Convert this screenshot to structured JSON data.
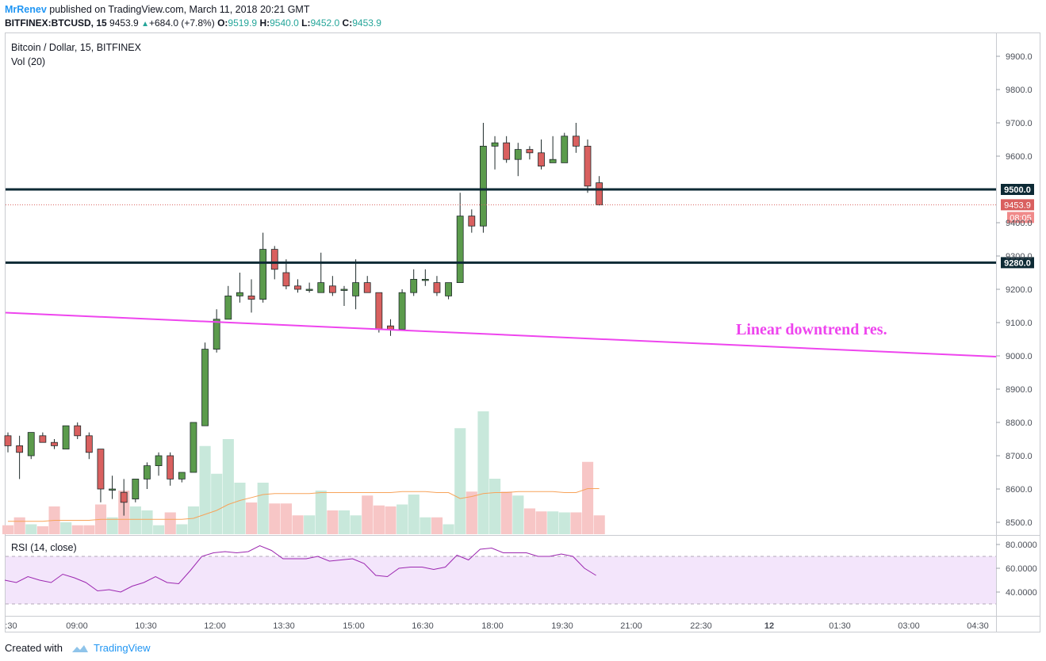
{
  "header": {
    "author": "MrRenev",
    "published": "published on TradingView.com, March 11, 2018 20:21 GMT",
    "symbol": "BITFINEX:BTCUSD, 15",
    "last": "9453.9",
    "change": "+684.0 (+7.8%)",
    "o_label": "O:",
    "o": "9519.9",
    "h_label": "H:",
    "h": "9540.0",
    "l_label": "L:",
    "l": "9452.0",
    "c_label": "C:",
    "c": "9453.9"
  },
  "legend": {
    "title": "Bitcoin / Dollar, 15, BITFINEX",
    "vol": "Vol (20)",
    "rsi": "RSI (14, close)"
  },
  "footer": {
    "created": "Created with",
    "brand": "TradingView"
  },
  "colors": {
    "up": "#5b9b4c",
    "down": "#d9605f",
    "level": "#0d2a35",
    "trend": "#ee45ee",
    "rsi": "#9c27b0",
    "rsi_fill": "#f3e5fb",
    "vol_up": "#c8e8db",
    "vol_down": "#f7c6c6",
    "vol_ma": "#f7a35a"
  },
  "chart_data": {
    "type": "candlestick",
    "price_ticks": [
      "9900.0",
      "9800.0",
      "9700.0",
      "9600.0",
      "9400.0",
      "9300.0",
      "9200.0",
      "9100.0",
      "9000.0",
      "8900.0",
      "8800.0",
      "8700.0",
      "8600.0",
      "8500.0"
    ],
    "time_ticks": [
      ":30",
      "09:00",
      "10:30",
      "12:00",
      "13:30",
      "15:00",
      "16:30",
      "18:00",
      "19:30",
      "21:00",
      "22:30",
      "12",
      "01:30",
      "03:00",
      "04:30"
    ],
    "ylim": [
      8475,
      9960
    ],
    "levels": [
      {
        "price": 9500,
        "label": "9500.0"
      },
      {
        "price": 9280,
        "label": "9280.0"
      }
    ],
    "last_price": {
      "price": 9453.9,
      "label": "9453.9",
      "countdown": "08:05"
    },
    "trendline": {
      "label": "Linear downtrend res.",
      "start_price": 9118,
      "end_price": 9000
    },
    "candles": [
      [
        8760,
        8770,
        8710,
        8730
      ],
      [
        8730,
        8760,
        8630,
        8710
      ],
      [
        8700,
        8770,
        8690,
        8770
      ],
      [
        8760,
        8770,
        8740,
        8740
      ],
      [
        8740,
        8750,
        8720,
        8730
      ],
      [
        8720,
        8790,
        8720,
        8790
      ],
      [
        8790,
        8800,
        8750,
        8760
      ],
      [
        8760,
        8770,
        8690,
        8710
      ],
      [
        8720,
        8720,
        8560,
        8600
      ],
      [
        8600,
        8640,
        8570,
        8600
      ],
      [
        8590,
        8630,
        8520,
        8560
      ],
      [
        8570,
        8620,
        8560,
        8630
      ],
      [
        8630,
        8680,
        8600,
        8670
      ],
      [
        8670,
        8710,
        8640,
        8700
      ],
      [
        8700,
        8710,
        8610,
        8630
      ],
      [
        8630,
        8640,
        8620,
        8650
      ],
      [
        8650,
        8800,
        8650,
        8800
      ],
      [
        8790,
        9040,
        8790,
        9020
      ],
      [
        9020,
        9140,
        9010,
        9110
      ],
      [
        9110,
        9210,
        9110,
        9180
      ],
      [
        9180,
        9250,
        9160,
        9190
      ],
      [
        9180,
        9230,
        9130,
        9170
      ],
      [
        9170,
        9370,
        9160,
        9320
      ],
      [
        9320,
        9330,
        9230,
        9260
      ],
      [
        9250,
        9290,
        9200,
        9210
      ],
      [
        9210,
        9230,
        9190,
        9200
      ],
      [
        9200,
        9220,
        9190,
        9200
      ],
      [
        9190,
        9310,
        9190,
        9220
      ],
      [
        9210,
        9240,
        9180,
        9190
      ],
      [
        9200,
        9210,
        9150,
        9200
      ],
      [
        9180,
        9290,
        9140,
        9220
      ],
      [
        9220,
        9240,
        9200,
        9190
      ],
      [
        9190,
        9190,
        9070,
        9080
      ],
      [
        9090,
        9110,
        9060,
        9080
      ],
      [
        9080,
        9200,
        9080,
        9190
      ],
      [
        9190,
        9260,
        9180,
        9230
      ],
      [
        9230,
        9260,
        9210,
        9230
      ],
      [
        9220,
        9240,
        9180,
        9190
      ],
      [
        9180,
        9220,
        9170,
        9220
      ],
      [
        9220,
        9490,
        9220,
        9420
      ],
      [
        9420,
        9440,
        9370,
        9390
      ],
      [
        9390,
        9700,
        9370,
        9630
      ],
      [
        9630,
        9660,
        9560,
        9640
      ],
      [
        9640,
        9660,
        9580,
        9590
      ],
      [
        9590,
        9640,
        9540,
        9620
      ],
      [
        9620,
        9630,
        9590,
        9610
      ],
      [
        9610,
        9650,
        9560,
        9570
      ],
      [
        9580,
        9660,
        9580,
        9590
      ],
      [
        9580,
        9670,
        9580,
        9660
      ],
      [
        9660,
        9700,
        9610,
        9630
      ],
      [
        9630,
        9650,
        9490,
        9510
      ],
      [
        9519.9,
        9540,
        9452,
        9453.9
      ]
    ],
    "volume_levels": [
      0.09,
      0.17,
      0.1,
      0.08,
      0.28,
      0.12,
      0.09,
      0.09,
      0.3,
      0.17,
      0.44,
      0.28,
      0.24,
      0.09,
      0.22,
      0.1,
      0.28,
      0.89,
      0.61,
      0.96,
      0.52,
      0.32,
      0.52,
      0.31,
      0.31,
      0.19,
      0.19,
      0.44,
      0.24,
      0.24,
      0.19,
      0.39,
      0.29,
      0.28,
      0.3,
      0.4,
      0.17,
      0.17,
      0.1,
      1.07,
      0.43,
      1.24,
      0.56,
      0.43,
      0.39,
      0.26,
      0.23,
      0.23,
      0.22,
      0.22,
      0.73,
      0.19
    ],
    "vol_ma_levels": [
      0.13,
      0.13,
      0.13,
      0.13,
      0.14,
      0.14,
      0.14,
      0.14,
      0.15,
      0.15,
      0.15,
      0.15,
      0.15,
      0.15,
      0.15,
      0.15,
      0.16,
      0.2,
      0.24,
      0.3,
      0.34,
      0.37,
      0.4,
      0.41,
      0.41,
      0.41,
      0.41,
      0.42,
      0.42,
      0.42,
      0.42,
      0.42,
      0.42,
      0.42,
      0.43,
      0.43,
      0.43,
      0.42,
      0.42,
      0.36,
      0.38,
      0.41,
      0.42,
      0.42,
      0.43,
      0.43,
      0.43,
      0.43,
      0.42,
      0.42,
      0.46,
      0.46
    ],
    "rsi": {
      "ticks": [
        "80.0000",
        "60.0000",
        "40.0000"
      ],
      "ylim": [
        20,
        85
      ],
      "band": [
        30,
        70
      ],
      "values": [
        50,
        48,
        53,
        50,
        48,
        55,
        52,
        48,
        41,
        42,
        40,
        45,
        48,
        53,
        48,
        47,
        58,
        70,
        73,
        74,
        73,
        74,
        79,
        75,
        68,
        68,
        68,
        70,
        66,
        67,
        68,
        64,
        54,
        53,
        60,
        61,
        61,
        59,
        61,
        71,
        67,
        76,
        77,
        73,
        73,
        73,
        70,
        70,
        72,
        70,
        60,
        54
      ]
    }
  }
}
